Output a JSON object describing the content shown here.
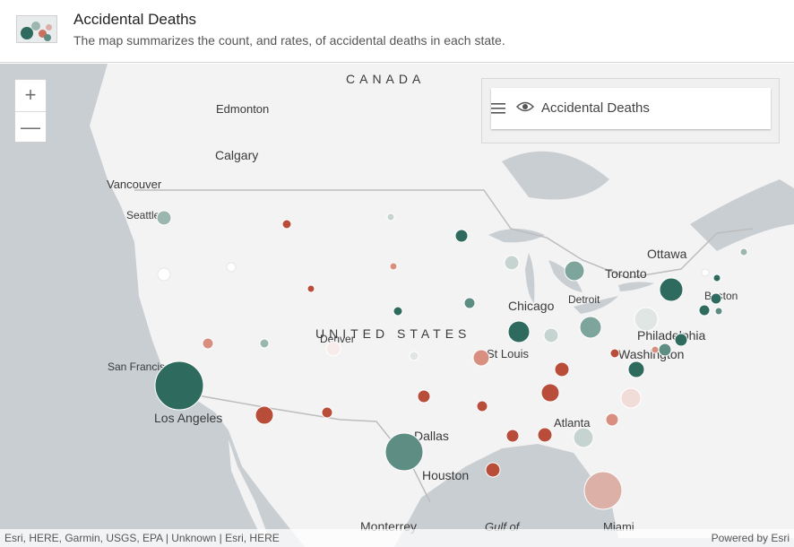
{
  "header": {
    "title": "Accidental Deaths",
    "subtitle": "The map summarizes the count, and rates, of accidental deaths in each state."
  },
  "zoom": {
    "in_label": "+",
    "out_label": "—"
  },
  "legend": {
    "layer_name": "Accidental Deaths",
    "icon": "eye-icon",
    "menu_icon": "list-icon"
  },
  "map": {
    "country_labels": [
      "CANADA",
      "UNITED STATES"
    ],
    "city_labels": [
      "Edmonton",
      "Calgary",
      "Vancouver",
      "Seattle",
      "San Francisco",
      "Los Angeles",
      "Denver",
      "Dallas",
      "Houston",
      "Monterrey",
      "Chicago",
      "St Louis",
      "Detroit",
      "Toronto",
      "Ottawa",
      "Boston",
      "Philadelphia",
      "Washington",
      "Atlanta",
      "Miami"
    ],
    "water_labels": [
      "Gulf of"
    ],
    "colors": {
      "high": "#2e6b5e",
      "low": "#b84e3a",
      "land": "#f3f3f3",
      "water": "#c9ced3"
    }
  },
  "attribution": {
    "sources": "Esri, HERE, Garmin, USGS, EPA | Unknown | Esri, HERE",
    "powered_by": "Powered by Esri"
  }
}
